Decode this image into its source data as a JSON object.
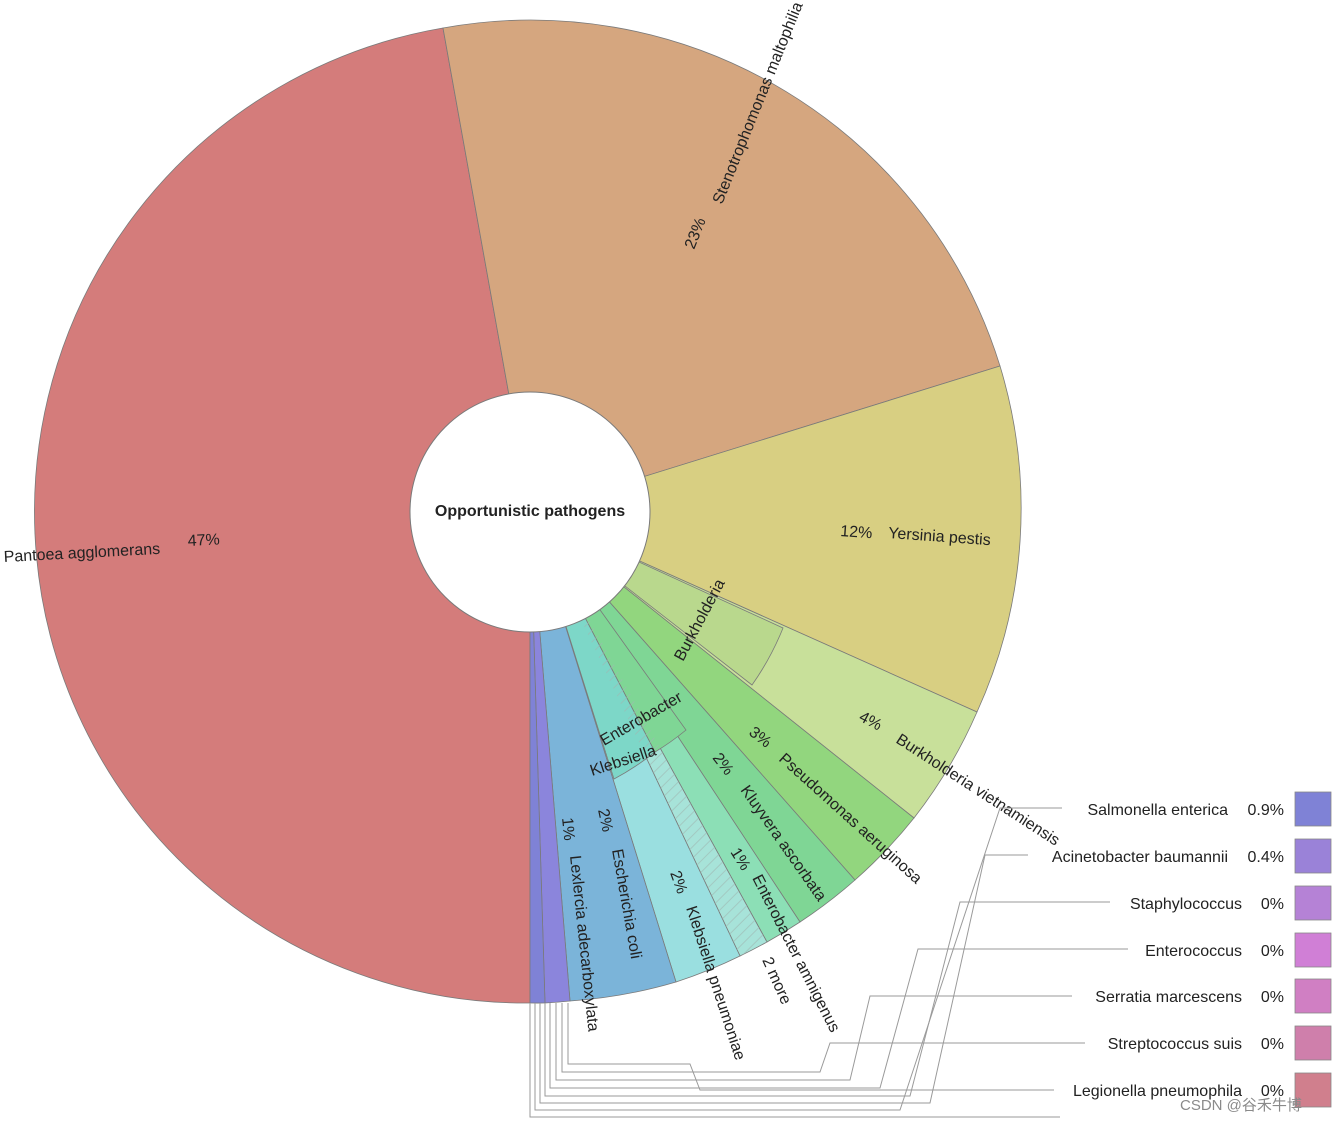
{
  "chart_data": {
    "type": "pie",
    "title": "Opportunistic pathogens",
    "slices": [
      {
        "name": "Pantoea agglomerans",
        "pct_label": "47%",
        "value": 47,
        "color": "#d47c7b"
      },
      {
        "name": "Stenotrophomonas maltophilia",
        "pct_label": "23%",
        "value": 23,
        "color": "#d5a67f"
      },
      {
        "name": "Yersinia pestis",
        "pct_label": "12%",
        "value": 12,
        "color": "#d8cf82"
      },
      {
        "name": "Burkholderia",
        "pct_label": "",
        "value": 7,
        "color": "#b9d88d",
        "children": [
          {
            "name": "Burkholderia",
            "pct_label": "",
            "value": 3,
            "color": "#b9d88d"
          },
          {
            "name": "Burkholderia vietnamiensis",
            "pct_label": "4%",
            "value": 4,
            "color": "#c8e09a"
          }
        ]
      },
      {
        "name": "Pseudomonas aeruginosa",
        "pct_label": "3%",
        "value": 3,
        "color": "#92d67e"
      },
      {
        "name": "Enterobacter",
        "pct_label": "",
        "value": 3,
        "color": "#7fd695",
        "children": [
          {
            "name": "Kluyvera ascorbata",
            "pct_label": "2%",
            "value": 2,
            "color": "#7fd695"
          },
          {
            "name": "Enterobacter amnigenus",
            "pct_label": "1%",
            "value": 1,
            "color": "#8cdfb6"
          }
        ]
      },
      {
        "name": "Klebsiella",
        "pct_label": "",
        "value": 3,
        "color": "#7dd7c8",
        "children": [
          {
            "name": "2 more",
            "pct_label": "",
            "value": 1,
            "color": "#a7e3d9"
          },
          {
            "name": "Klebsiella pneumoniae",
            "pct_label": "2%",
            "value": 2,
            "color": "#9adfe0"
          }
        ]
      },
      {
        "name": "Escherichia coli",
        "pct_label": "2%",
        "value": 2,
        "color": "#7bb4d9"
      },
      {
        "name": "Lexlercia adecarboxylata",
        "pct_label": "1%",
        "value": 1,
        "color": "#8b85dc"
      }
    ],
    "legend": [
      {
        "name": "Salmonella enterica",
        "pct_label": "0.9%",
        "color": "#7f82d6"
      },
      {
        "name": "Acinetobacter baumannii",
        "pct_label": "0.4%",
        "color": "#9a82d8"
      },
      {
        "name": "Staphylococcus",
        "pct_label": "0%",
        "color": "#b582d6"
      },
      {
        "name": "Enterococcus",
        "pct_label": "0%",
        "color": "#d07fd6"
      },
      {
        "name": "Serratia marcescens",
        "pct_label": "0%",
        "color": "#d07fc3"
      },
      {
        "name": "Streptococcus suis",
        "pct_label": "0%",
        "color": "#cf7fab"
      },
      {
        "name": "Legionella pneumophila",
        "pct_label": "0%",
        "color": "#d07f8d"
      }
    ]
  },
  "watermark": "CSDN @谷禾牛博"
}
